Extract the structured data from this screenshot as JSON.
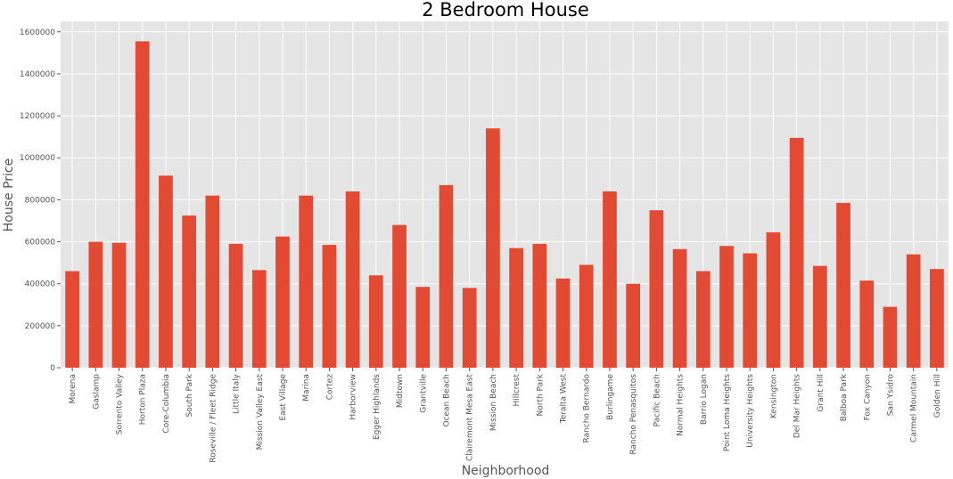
{
  "chart_data": {
    "type": "bar",
    "title": "2 Bedroom House",
    "xlabel": "Neighborhood",
    "ylabel": "House Price",
    "ylim": [
      0,
      1650000
    ],
    "yticks": [
      "0",
      "200000",
      "400000",
      "600000",
      "800000",
      "1000000",
      "1200000",
      "1400000",
      "1600000"
    ],
    "grid": true,
    "categories": [
      "Morena",
      "Gaslamp",
      "Sorrento Valley",
      "Horton Plaza",
      "Core-Columbia",
      "South Park",
      "Roseville / Fleet Ridge",
      "Little Italy",
      "Mission Valley East",
      "East Village",
      "Marina",
      "Cortez",
      "Harborview",
      "Egger Highlands",
      "Midtown",
      "Grantville",
      "Ocean Beach",
      "Clairemont Mesa East",
      "Mission Beach",
      "Hillcrest",
      "North Park",
      "Teralta West",
      "Rancho Bernardo",
      "Burlingame",
      "Rancho Penasquitos",
      "Pacific Beach",
      "Normal Heights",
      "Barrio Logan",
      "Point Loma Heights",
      "University Heights",
      "Kensington",
      "Del Mar Heights",
      "Grant Hill",
      "Balboa Park",
      "Fox Canyon",
      "San Ysidro",
      "Carmel Mountain",
      "Golden Hill"
    ],
    "values": [
      460000,
      600000,
      595000,
      1555000,
      915000,
      725000,
      820000,
      590000,
      465000,
      625000,
      820000,
      585000,
      840000,
      440000,
      680000,
      385000,
      870000,
      380000,
      1140000,
      570000,
      590000,
      425000,
      490000,
      840000,
      400000,
      750000,
      565000,
      460000,
      580000,
      545000,
      645000,
      1095000,
      485000,
      785000,
      415000,
      290000,
      540000,
      470000
    ],
    "colors": {
      "bar": "#E24A33",
      "plot_background": "#E5E5E5",
      "grid": "#FFFFFF",
      "tick_text": "#555555"
    }
  }
}
